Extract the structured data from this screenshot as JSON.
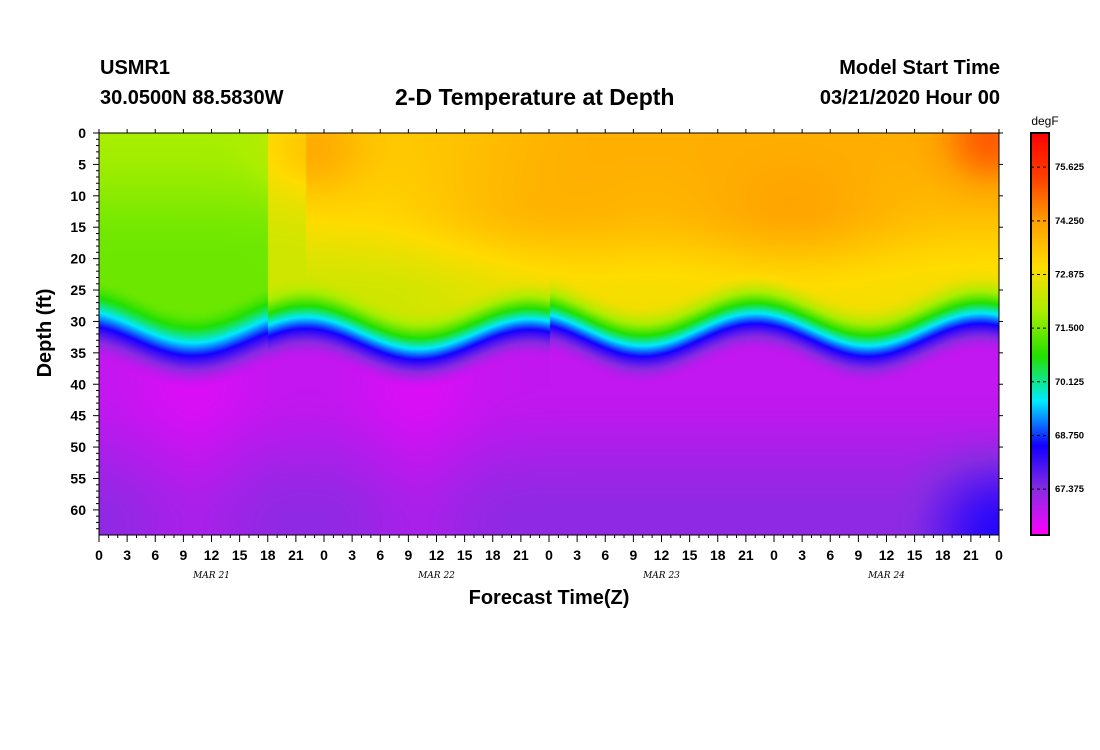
{
  "header": {
    "station": "USMR1",
    "coords": "30.0500N 88.5830W",
    "title": "2-D Temperature at Depth",
    "model_start_label": "Model Start Time",
    "model_start_time": "03/21/2020 Hour 00"
  },
  "chart_data": {
    "type": "heatmap",
    "title": "2-D Temperature at Depth",
    "xlabel": "Forecast Time(Z)",
    "ylabel": "Depth (ft)",
    "x_tick_labels": [
      "0",
      "3",
      "6",
      "9",
      "12",
      "15",
      "18",
      "21",
      "0",
      "3",
      "6",
      "9",
      "12",
      "15",
      "18",
      "21",
      "0",
      "3",
      "6",
      "9",
      "12",
      "15",
      "18",
      "21",
      "0",
      "3",
      "6",
      "9",
      "12",
      "15",
      "18",
      "21",
      "0"
    ],
    "x_range_hours": [
      0,
      96
    ],
    "date_labels": [
      "MAR 21",
      "MAR 22",
      "MAR 23",
      "MAR 24"
    ],
    "date_label_hours": [
      12,
      36,
      60,
      84
    ],
    "y_tick_labels": [
      "0",
      "5",
      "10",
      "15",
      "20",
      "25",
      "30",
      "35",
      "40",
      "45",
      "50",
      "55",
      "60"
    ],
    "y_range_ft": [
      0,
      64
    ],
    "colorbar": {
      "units": "degF",
      "labels": [
        "75.625",
        "74.250",
        "72.875",
        "71.500",
        "70.125",
        "68.750",
        "67.375"
      ],
      "range": [
        66.2,
        76.5
      ],
      "colors": [
        "#ff00ff",
        "#8a2be2",
        "#1400ff",
        "#00eaff",
        "#22e000",
        "#aaee00",
        "#ffdc00",
        "#ffa000",
        "#ff4000",
        "#ff0000"
      ]
    },
    "summary": "Warm upper layer (~72.5-75 degF) above ~30 ft; sharp thermocline at ~30-45 ft oscillating roughly daily; cold water (~66.5-68 degF) below ~45 ft."
  }
}
